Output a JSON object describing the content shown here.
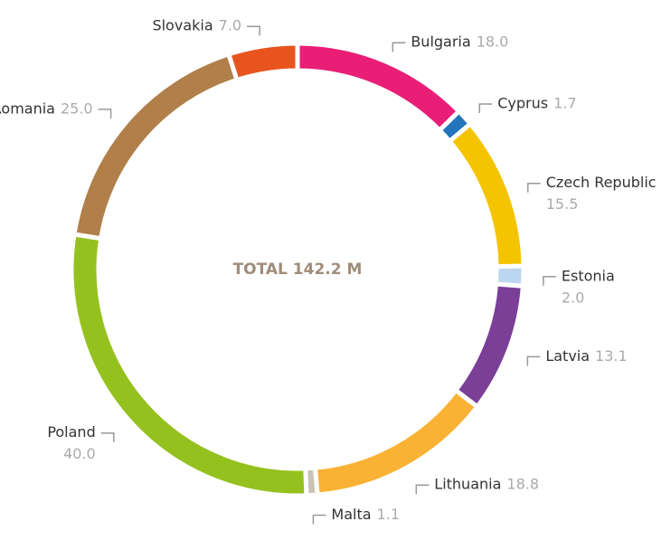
{
  "chart_data": {
    "type": "donut",
    "center_label": "TOTAL 142.2 M",
    "categories": [
      "Bulgaria",
      "Cyprus",
      "Czech Republic",
      "Estonia",
      "Latvia",
      "Lithuania",
      "Malta",
      "Poland",
      "Romania",
      "Slovakia"
    ],
    "values": [
      18.0,
      1.7,
      15.5,
      2.0,
      13.1,
      18.8,
      1.1,
      40.0,
      25.0,
      7.0
    ],
    "value_labels": [
      "18.0",
      "1.7",
      "15.5",
      "2.0",
      "13.1",
      "18.8",
      "1.1",
      "40.0",
      "25.0",
      "7.0"
    ],
    "colors": [
      "#e91e77",
      "#2474bb",
      "#f5c400",
      "#bcd6f0",
      "#7b3f98",
      "#f9b233",
      "#c8c3b4",
      "#95c11f",
      "#b07f4a",
      "#e8541e"
    ]
  }
}
